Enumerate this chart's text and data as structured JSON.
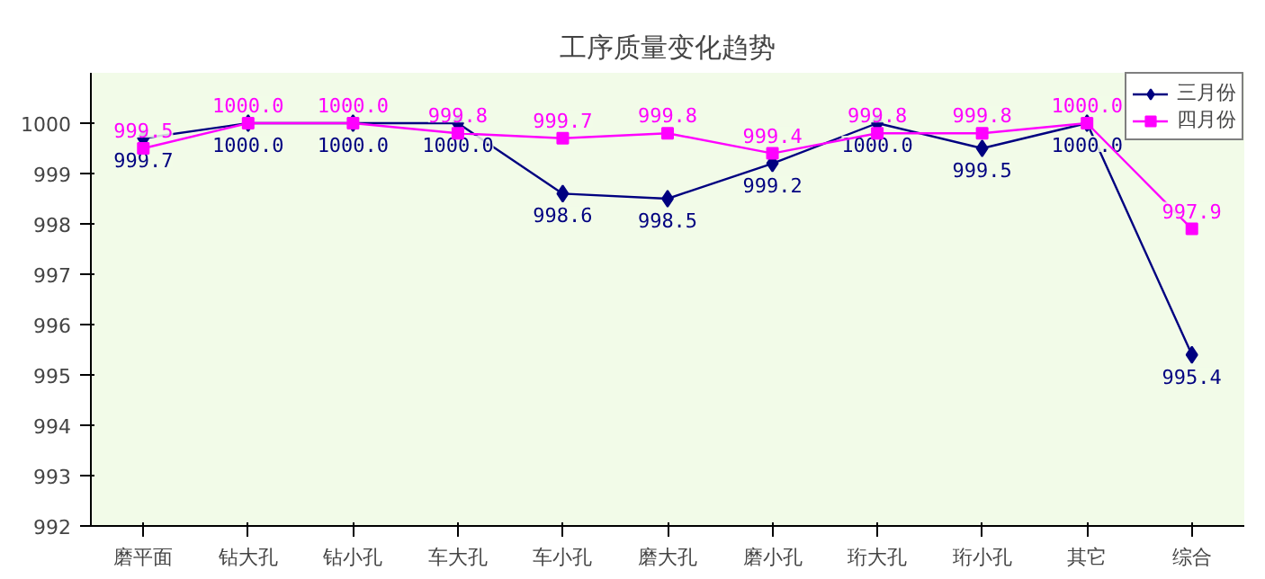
{
  "chart_data": {
    "type": "line",
    "title": "工序质量变化趋势",
    "categories": [
      "磨平面",
      "钻大孔",
      "钻小孔",
      "车大孔",
      "车小孔",
      "磨大孔",
      "磨小孔",
      "珩大孔",
      "珩小孔",
      "其它",
      "综合"
    ],
    "series": [
      {
        "name": "三月份",
        "color": "#000080",
        "marker": "diamond",
        "values": [
          999.7,
          1000.0,
          1000.0,
          1000.0,
          998.6,
          998.5,
          999.2,
          1000.0,
          999.5,
          1000.0,
          995.4
        ],
        "value_labels": [
          "999.7",
          "1000.0",
          "1000.0",
          "1000.0",
          "998.6",
          "998.5",
          "999.2",
          "1000.0",
          "999.5",
          "1000.0",
          "995.4"
        ]
      },
      {
        "name": "四月份",
        "color": "#ff00ff",
        "marker": "square",
        "values": [
          999.5,
          1000.0,
          1000.0,
          999.8,
          999.7,
          999.8,
          999.4,
          999.8,
          999.8,
          1000.0,
          997.9
        ],
        "value_labels": [
          "999.5",
          "1000.0",
          "1000.0",
          "999.8",
          "999.7",
          "999.8",
          "999.4",
          "999.8",
          "999.8",
          "1000.0",
          "997.9"
        ]
      }
    ],
    "ylim": [
      992,
      1001
    ],
    "yticks": [
      992,
      993,
      994,
      995,
      996,
      997,
      998,
      999,
      1000
    ],
    "grid": false,
    "legend": "top right"
  }
}
